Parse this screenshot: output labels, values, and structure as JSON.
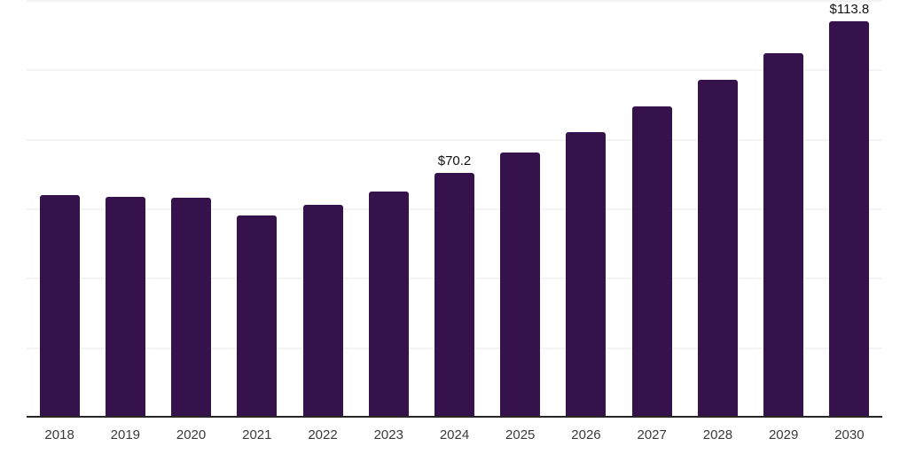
{
  "chart": {
    "background_color": "#ffffff",
    "bar_color": "#36124D",
    "axis_color": "#262626",
    "grid_color": "#f4f4f4",
    "data_label_color": "#111111",
    "tick_label_color": "#3a3a3a"
  },
  "chart_data": {
    "type": "bar",
    "title": "",
    "xlabel": "",
    "ylabel": "",
    "categories": [
      "2018",
      "2019",
      "2020",
      "2021",
      "2022",
      "2023",
      "2024",
      "2025",
      "2026",
      "2027",
      "2028",
      "2029",
      "2030"
    ],
    "values": [
      63.9,
      63.2,
      63.0,
      57.9,
      60.9,
      64.8,
      70.2,
      76.1,
      82.0,
      89.3,
      96.9,
      104.8,
      113.8
    ],
    "data_labels": {
      "2024": "$70.2",
      "2030": "$113.8"
    },
    "ylim": [
      0,
      120
    ],
    "gridline_step": 20,
    "grid": "horizontal-only",
    "y_axis_ticks_visible": false,
    "legend": "none"
  }
}
